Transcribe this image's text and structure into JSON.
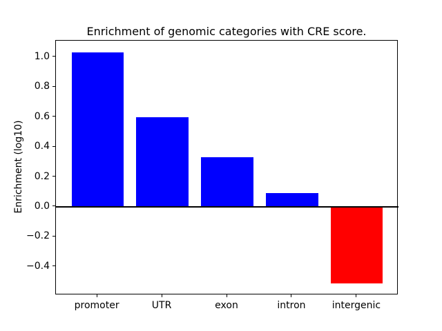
{
  "figure": {
    "background_color": "#ffffff",
    "text_color": "#000000"
  },
  "chart_data": {
    "type": "bar",
    "title": "Enrichment of genomic categories with CRE score.",
    "xlabel": "",
    "ylabel": "Enrichment (log10)",
    "categories": [
      "promoter",
      "UTR",
      "exon",
      "intron",
      "intergenic"
    ],
    "values": [
      1.03,
      0.6,
      0.33,
      0.09,
      -0.51
    ],
    "bar_colors": [
      "#0000ff",
      "#0000ff",
      "#0000ff",
      "#0000ff",
      "#ff0000"
    ],
    "positive_color": "#0000ff",
    "negative_color": "#ff0000",
    "bar_width": 0.8,
    "xlim": [
      -0.64,
      4.64
    ],
    "ylim": [
      -0.59,
      1.11
    ],
    "yticks": [
      {
        "value": 1.0,
        "label": "1.0"
      },
      {
        "value": 0.8,
        "label": "0.8"
      },
      {
        "value": 0.6,
        "label": "0.6"
      },
      {
        "value": 0.4,
        "label": "0.4"
      },
      {
        "value": 0.2,
        "label": "0.2"
      },
      {
        "value": 0.0,
        "label": "0.0"
      },
      {
        "value": -0.2,
        "label": "−0.2"
      },
      {
        "value": -0.4,
        "label": "−0.4"
      }
    ],
    "zero_line": {
      "value": 0.0,
      "color": "#000000"
    },
    "grid": false,
    "legend": null
  }
}
